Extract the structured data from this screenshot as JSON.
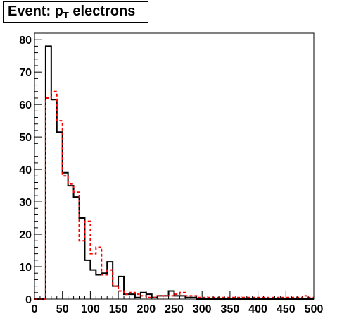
{
  "title": {
    "main": "Event: p",
    "sub": "T",
    "tail": " electrons"
  },
  "chart_data": {
    "type": "histogram",
    "title": "Event: p_T electrons",
    "xlabel": "",
    "ylabel": "",
    "xlim": [
      0,
      500
    ],
    "ylim": [
      0,
      82
    ],
    "bin_width": 10,
    "x_ticks": [
      "0",
      "50",
      "100",
      "150",
      "200",
      "250",
      "300",
      "350",
      "400",
      "450",
      "500"
    ],
    "y_ticks": [
      "0",
      "10",
      "20",
      "30",
      "40",
      "50",
      "60",
      "70",
      "80"
    ],
    "x_tick_values": [
      0,
      50,
      100,
      150,
      200,
      250,
      300,
      350,
      400,
      450,
      500
    ],
    "y_tick_values": [
      0,
      10,
      20,
      30,
      40,
      50,
      60,
      70,
      80
    ],
    "series": [
      {
        "color": "#000000",
        "style": "solid",
        "bin_edges_start": 0,
        "values": [
          0,
          0,
          78,
          61.5,
          51.5,
          39,
          35,
          31.5,
          25,
          12,
          9,
          7.5,
          8,
          11.5,
          4,
          7,
          1.5,
          1.5,
          0.5,
          2,
          1.5,
          0.5,
          1,
          1,
          2.5,
          1,
          1,
          0.5,
          0.5,
          0,
          0,
          0,
          0,
          0,
          0,
          0,
          0,
          0,
          0,
          0,
          0,
          0,
          0,
          0,
          0,
          0,
          0,
          0,
          0,
          0
        ]
      },
      {
        "color": "#ff0000",
        "style": "dashed",
        "bin_edges_start": 0,
        "values": [
          0,
          0,
          62,
          64,
          55,
          38,
          35.5,
          33,
          18,
          24,
          14,
          16,
          7.5,
          9,
          4,
          2.5,
          1.5,
          2,
          1.5,
          1,
          0.5,
          0.5,
          1,
          1,
          1,
          1.5,
          2,
          1,
          1,
          0.5,
          0.5,
          0.5,
          0.5,
          0.5,
          0.5,
          0.5,
          0.5,
          0.5,
          0.5,
          0.5,
          0.5,
          0.5,
          0.5,
          0.5,
          0.5,
          0.5,
          0.5,
          0.5,
          1,
          0.5
        ]
      }
    ],
    "grid": false,
    "legend": "none"
  }
}
